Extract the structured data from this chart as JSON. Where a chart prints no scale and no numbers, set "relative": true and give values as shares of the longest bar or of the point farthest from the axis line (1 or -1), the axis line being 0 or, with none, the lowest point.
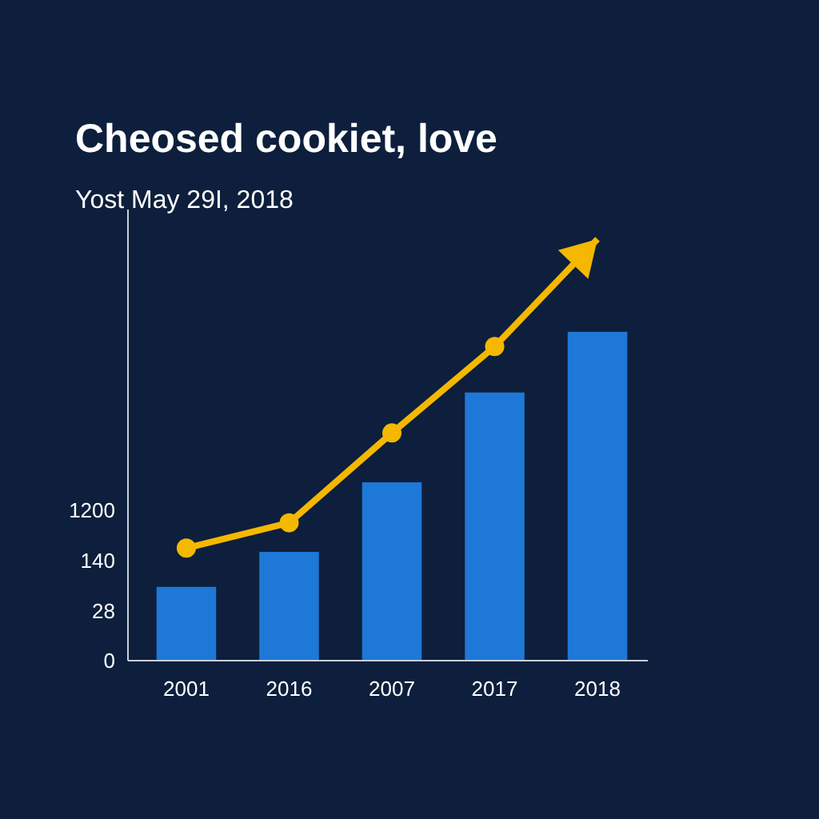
{
  "chart_data": {
    "type": "bar",
    "title": "Cheosed cookiet, love",
    "subtitle": "Yost May 29I, 2018",
    "categories": [
      "2001",
      "2016",
      "2007",
      "2017",
      "2018"
    ],
    "relative": true,
    "series": [
      {
        "color": "#1e78d7",
        "values": [
          0.175,
          0.258,
          0.423,
          0.636,
          0.78
        ]
      },
      {
        "type": "line",
        "color": "#f5b800",
        "values": [
          0.267,
          0.327,
          0.54,
          0.745,
          1
        ]
      }
    ],
    "annotations": [
      "0",
      "28",
      "140",
      "1200"
    ],
    "marker": "circle",
    "line_style": "solid"
  }
}
